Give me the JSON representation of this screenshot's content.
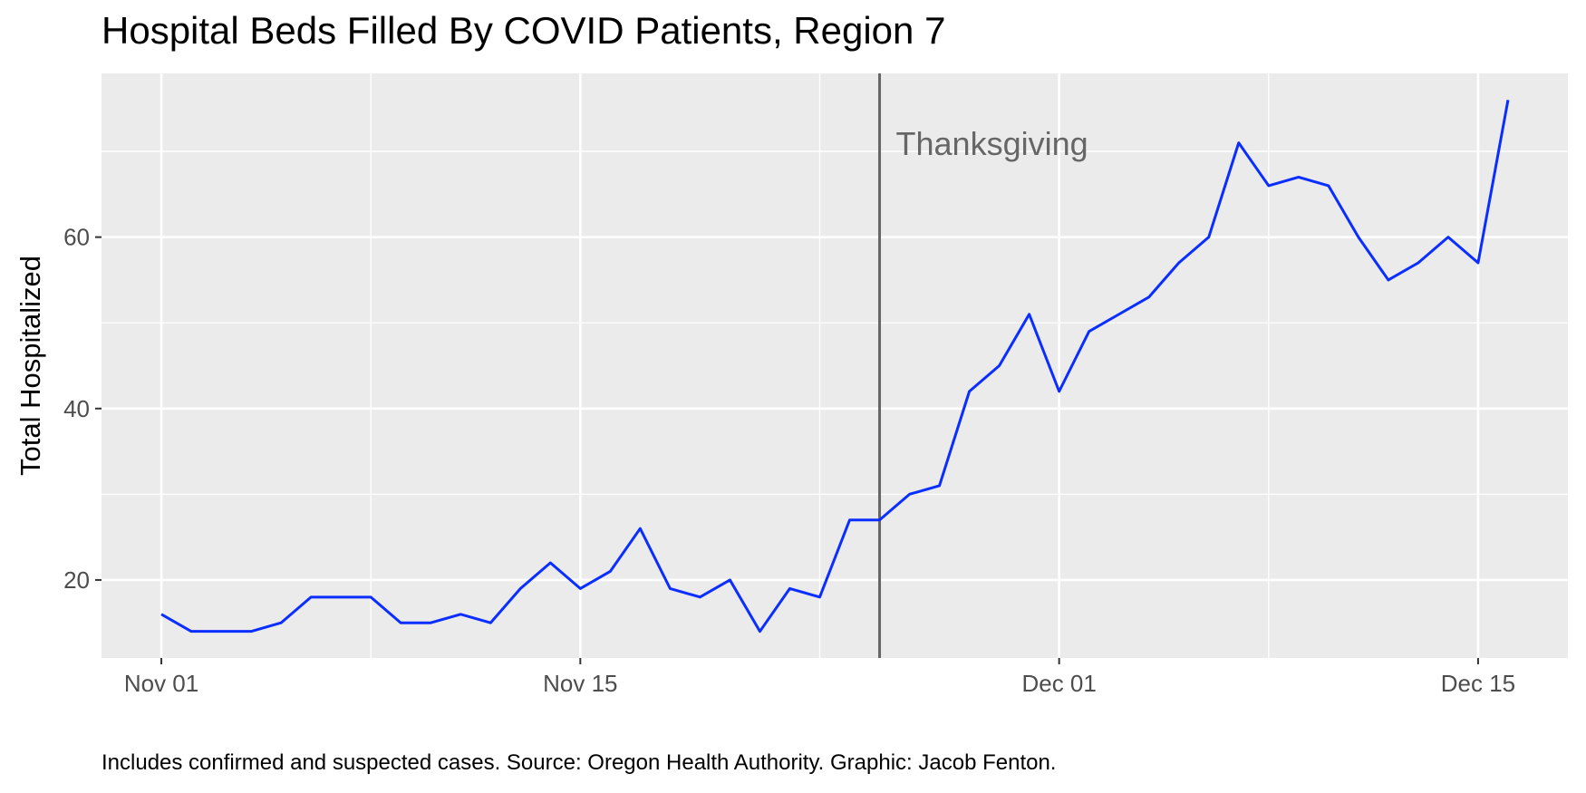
{
  "chart_data": {
    "type": "line",
    "title": "Hospital Beds Filled By COVID Patients, Region 7",
    "caption": "Includes confirmed and suspected cases. Source: Oregon Health Authority. Graphic: Jacob Fenton.",
    "xlabel": "",
    "ylabel": "Total Hospitalized",
    "x_tick_labels": [
      "Nov 01",
      "Nov 15",
      "Dec 01",
      "Dec 15"
    ],
    "x_tick_dates": [
      "2020-11-01",
      "2020-11-15",
      "2020-12-01",
      "2020-12-15"
    ],
    "xlim": [
      "2020-10-30",
      "2020-12-18"
    ],
    "y_tick_labels": [
      "20",
      "40",
      "60"
    ],
    "y_ticks": [
      20,
      40,
      60
    ],
    "ylim": [
      10.9,
      79.1
    ],
    "grid": true,
    "line_color": "#0a2eff",
    "annotation": {
      "label": "Thanksgiving",
      "date": "2020-11-25",
      "color": "#666666"
    },
    "series": [
      {
        "x": [
          "2020-11-01",
          "2020-11-02",
          "2020-11-03",
          "2020-11-04",
          "2020-11-05",
          "2020-11-06",
          "2020-11-07",
          "2020-11-08",
          "2020-11-09",
          "2020-11-10",
          "2020-11-11",
          "2020-11-12",
          "2020-11-13",
          "2020-11-14",
          "2020-11-15",
          "2020-11-16",
          "2020-11-17",
          "2020-11-18",
          "2020-11-19",
          "2020-11-20",
          "2020-11-21",
          "2020-11-22",
          "2020-11-23",
          "2020-11-24",
          "2020-11-25",
          "2020-11-26",
          "2020-11-27",
          "2020-11-28",
          "2020-11-29",
          "2020-11-30",
          "2020-12-01",
          "2020-12-02",
          "2020-12-03",
          "2020-12-04",
          "2020-12-05",
          "2020-12-06",
          "2020-12-07",
          "2020-12-08",
          "2020-12-09",
          "2020-12-10",
          "2020-12-11",
          "2020-12-12",
          "2020-12-13",
          "2020-12-14",
          "2020-12-15",
          "2020-12-16"
        ],
        "values": [
          16,
          14,
          14,
          14,
          15,
          18,
          18,
          18,
          15,
          15,
          16,
          15,
          19,
          22,
          19,
          21,
          26,
          19,
          18,
          20,
          14,
          19,
          18,
          27,
          27,
          30,
          31,
          42,
          45,
          51,
          42,
          49,
          51,
          53,
          57,
          60,
          71,
          66,
          67,
          66,
          60,
          55,
          57,
          60,
          57,
          76
        ]
      }
    ]
  }
}
